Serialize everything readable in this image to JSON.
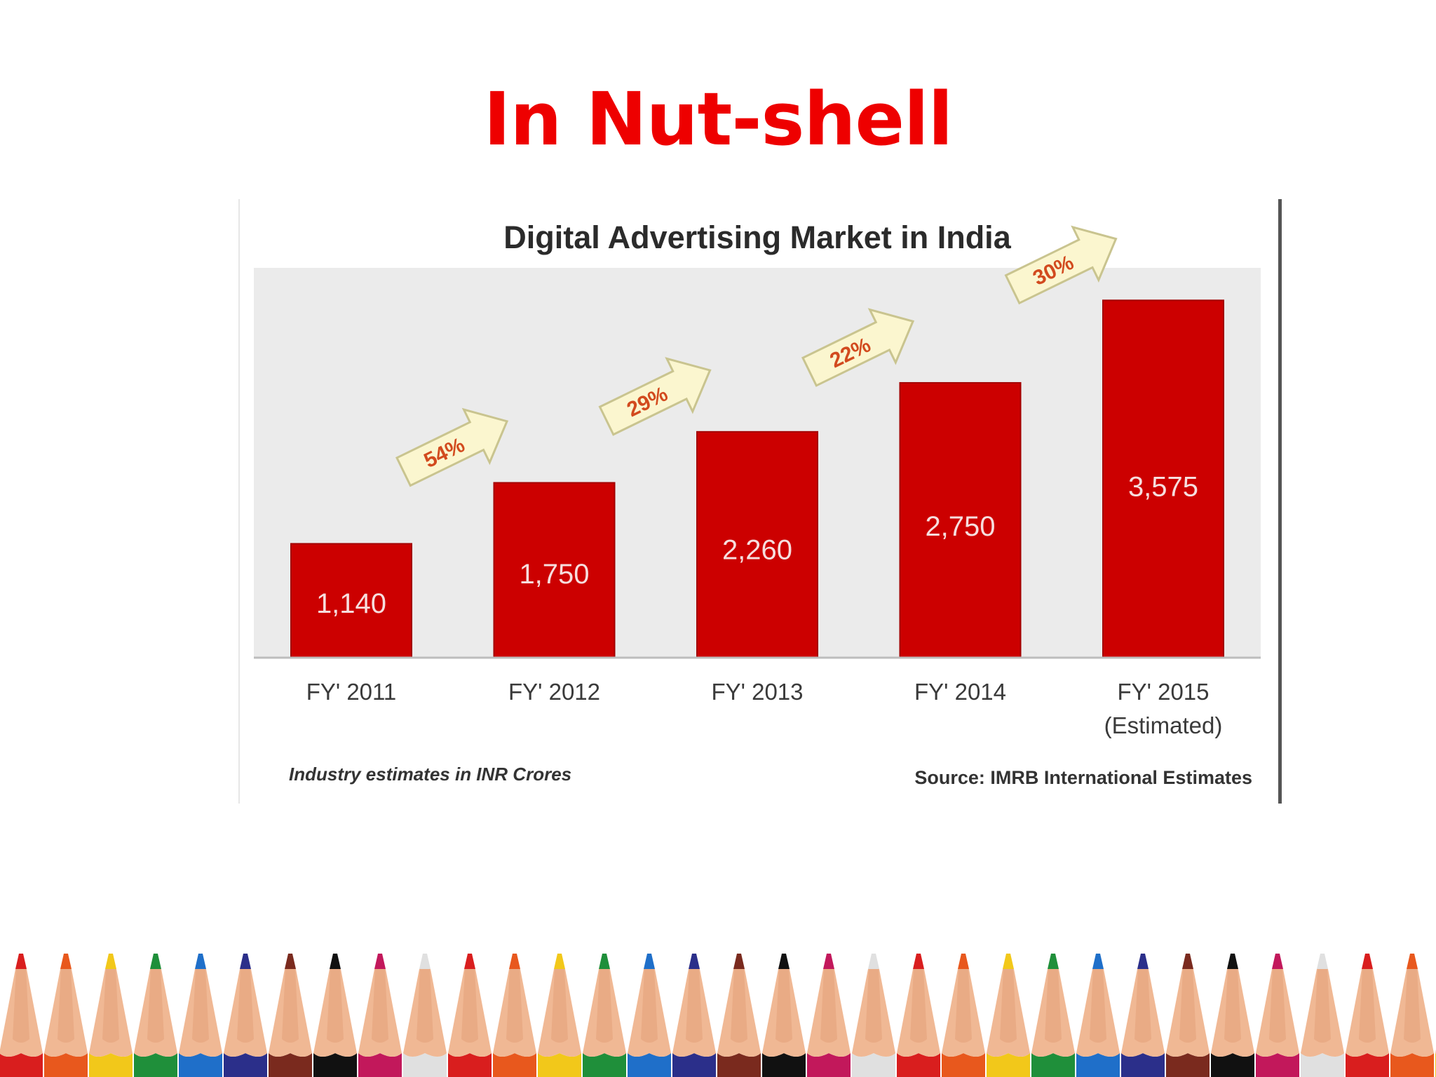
{
  "slide": {
    "title": "In Nut-shell"
  },
  "chart_data": {
    "type": "bar",
    "title": "Digital Advertising Market in India",
    "categories": [
      "FY' 2011",
      "FY' 2012",
      "FY' 2013",
      "FY' 2014",
      "FY' 2015"
    ],
    "category_sublabels": [
      "",
      "",
      "",
      "",
      "(Estimated)"
    ],
    "values": [
      1140,
      1750,
      2260,
      2750,
      3575
    ],
    "value_labels": [
      "1,140",
      "1,750",
      "2,260",
      "2,750",
      "3,575"
    ],
    "growth_labels": [
      "54%",
      "29%",
      "22%",
      "30%"
    ],
    "ylim": [
      0,
      3900
    ],
    "grid": false,
    "footnote_left": "Industry estimates in INR Crores",
    "footnote_right": "Source: IMRB International Estimates"
  },
  "colors": {
    "title_red": "#ee0000",
    "bar": "#cc0000",
    "bar_edge": "#a30000",
    "plot_bg": "#ebebeb",
    "arrow_fill": "#fbf6cf",
    "arrow_stroke": "#c9c48f",
    "growth_text": "#d24a1e",
    "pencil_colors": [
      "#d91e1e",
      "#e8581d",
      "#f2c81a",
      "#1f8f3a",
      "#1f6fc9",
      "#2b2f8a",
      "#7a2a1e",
      "#111111",
      "#c2185b",
      "#e0e0e0"
    ]
  },
  "decor": {
    "pencil_border": "pencil-border-decoration"
  }
}
